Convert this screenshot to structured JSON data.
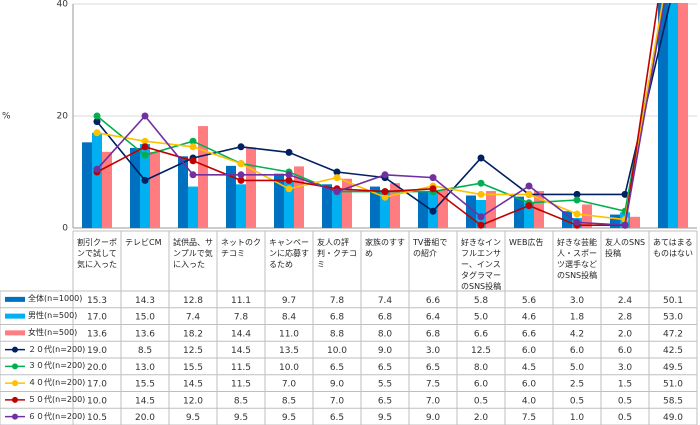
{
  "chart_data": {
    "type": "bar",
    "y_label": "%",
    "categories": [
      "割引クーポンで試して気に入った",
      "テレビCM",
      "試供品、サンプルで気に入った",
      "ネットのクチコミ",
      "キャンペーンに応募するため",
      "友人の評判・クチコミ",
      "家族のすすめ",
      "TV番組での紹介",
      "好きなインフルエンサー、インスタグラマーのSNS投稿",
      "WEB広告",
      "好きな芸能人・スポーツ選手などのSNS投稿",
      "友人のSNS投稿",
      "あてはまるものはない"
    ],
    "ylim": [
      0,
      40
    ],
    "yticks": [
      0,
      20,
      40
    ],
    "grid": true,
    "series": [
      {
        "name": "全体(n=1000)",
        "type": "bar",
        "color": "#0070c0",
        "values": [
          15.3,
          14.3,
          12.8,
          11.1,
          9.7,
          7.8,
          7.4,
          6.6,
          5.8,
          5.6,
          3.0,
          2.4,
          50.1
        ],
        "value_labels": [
          "15.3",
          "14.3",
          "12.8",
          "11.1",
          "9.7",
          "7.8",
          "7.4",
          "6.6",
          "5.8",
          "5.6",
          "3.0",
          "2.4",
          "50.1"
        ]
      },
      {
        "name": "男性(n=500)",
        "type": "bar",
        "color": "#00b0f0",
        "values": [
          17.0,
          15.0,
          7.4,
          7.8,
          8.4,
          6.8,
          6.8,
          6.4,
          5.0,
          4.6,
          1.8,
          2.8,
          53.0
        ],
        "value_labels": [
          "17.0",
          "15.0",
          "7.4",
          "7.8",
          "8.4",
          "6.8",
          "6.8",
          "6.4",
          "5.0",
          "4.6",
          "1.8",
          "2.8",
          "53.0"
        ]
      },
      {
        "name": "女性(n=500)",
        "type": "bar",
        "color": "#ff7c80",
        "values": [
          13.6,
          13.6,
          18.2,
          14.4,
          11.0,
          8.8,
          8.0,
          6.8,
          6.6,
          6.6,
          4.2,
          2.0,
          47.2
        ],
        "value_labels": [
          "13.6",
          "13.6",
          "18.2",
          "14.4",
          "11.0",
          "8.8",
          "8.0",
          "6.8",
          "6.6",
          "6.6",
          "4.2",
          "2.0",
          "47.2"
        ]
      },
      {
        "name": "２０代(n=200)",
        "type": "line",
        "color": "#002060",
        "values": [
          19.0,
          8.5,
          12.5,
          14.5,
          13.5,
          10.0,
          9.0,
          3.0,
          12.5,
          6.0,
          6.0,
          6.0,
          42.5
        ],
        "value_labels": [
          "19.0",
          "8.5",
          "12.5",
          "14.5",
          "13.5",
          "10.0",
          "9.0",
          "3.0",
          "12.5",
          "6.0",
          "6.0",
          "6.0",
          "42.5"
        ]
      },
      {
        "name": "３０代(n=200)",
        "type": "line",
        "color": "#00b050",
        "values": [
          20.0,
          13.0,
          15.5,
          11.5,
          10.0,
          6.5,
          6.5,
          6.5,
          8.0,
          4.5,
          5.0,
          3.0,
          49.5
        ],
        "value_labels": [
          "20.0",
          "13.0",
          "15.5",
          "11.5",
          "10.0",
          "6.5",
          "6.5",
          "6.5",
          "8.0",
          "4.5",
          "5.0",
          "3.0",
          "49.5"
        ]
      },
      {
        "name": "４０代(n=200)",
        "type": "line",
        "color": "#ffc000",
        "values": [
          17.0,
          15.5,
          14.5,
          11.5,
          7.0,
          9.0,
          5.5,
          7.5,
          6.0,
          6.0,
          2.5,
          1.5,
          51.0
        ],
        "value_labels": [
          "17.0",
          "15.5",
          "14.5",
          "11.5",
          "7.0",
          "9.0",
          "5.5",
          "7.5",
          "6.0",
          "6.0",
          "2.5",
          "1.5",
          "51.0"
        ]
      },
      {
        "name": "５０代(n=200)",
        "type": "line",
        "color": "#c00000",
        "values": [
          10.0,
          14.5,
          12.0,
          8.5,
          8.5,
          7.0,
          6.5,
          7.0,
          0.5,
          4.0,
          0.5,
          0.5,
          58.5
        ],
        "value_labels": [
          "10.0",
          "14.5",
          "12.0",
          "8.5",
          "8.5",
          "7.0",
          "6.5",
          "7.0",
          "0.5",
          "4.0",
          "0.5",
          "0.5",
          "58.5"
        ]
      },
      {
        "name": "６０代(n=200)",
        "type": "line",
        "color": "#7030a0",
        "values": [
          10.5,
          20.0,
          9.5,
          9.5,
          9.5,
          6.5,
          9.5,
          9.0,
          2.0,
          7.5,
          1.0,
          0.5,
          49.0
        ],
        "value_labels": [
          "10.5",
          "20.0",
          "9.5",
          "9.5",
          "9.5",
          "6.5",
          "9.5",
          "9.0",
          "2.0",
          "7.5",
          "1.0",
          "0.5",
          "49.0"
        ]
      }
    ]
  }
}
